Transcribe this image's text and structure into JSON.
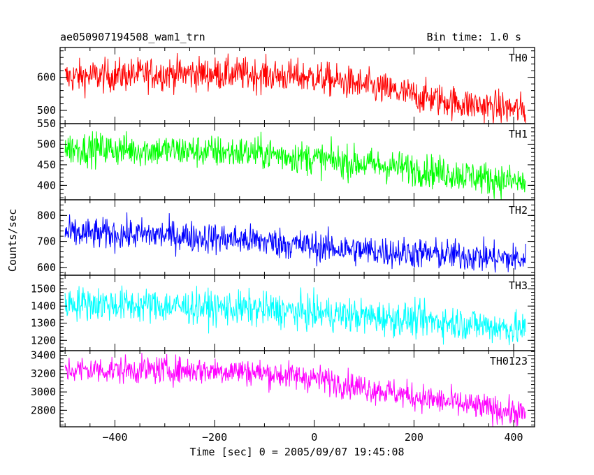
{
  "header": {
    "title": "ae050907194508_wam1_trn",
    "bin_time": "Bin time: 1.0 s"
  },
  "axes": {
    "xlabel": "Time [sec] 0 = 2005/09/07 19:45:08",
    "ylabel": "Counts/sec"
  },
  "chart_data": [
    {
      "type": "line",
      "name": "TH0",
      "color": "#ff0000",
      "x_range": [
        -500,
        424
      ],
      "ylim": [
        460,
        690
      ],
      "yticks": [
        500,
        600
      ],
      "trend": [
        [
          -500,
          600
        ],
        [
          -300,
          612
        ],
        [
          -150,
          610
        ],
        [
          0,
          600
        ],
        [
          100,
          575
        ],
        [
          200,
          545
        ],
        [
          300,
          520
        ],
        [
          424,
          500
        ]
      ],
      "noise": 25
    },
    {
      "type": "line",
      "name": "TH1",
      "color": "#00ff00",
      "x_range": [
        -500,
        424
      ],
      "ylim": [
        365,
        550
      ],
      "yticks": [
        400,
        450,
        500,
        550
      ],
      "trend": [
        [
          -500,
          490
        ],
        [
          -300,
          485
        ],
        [
          -100,
          478
        ],
        [
          0,
          465
        ],
        [
          100,
          452
        ],
        [
          200,
          440
        ],
        [
          300,
          425
        ],
        [
          424,
          405
        ]
      ],
      "noise": 20
    },
    {
      "type": "line",
      "name": "TH2",
      "color": "#0000ff",
      "x_range": [
        -500,
        424
      ],
      "ylim": [
        570,
        860
      ],
      "yticks": [
        600,
        700,
        800
      ],
      "trend": [
        [
          -500,
          730
        ],
        [
          -300,
          725
        ],
        [
          -100,
          700
        ],
        [
          0,
          680
        ],
        [
          100,
          665
        ],
        [
          200,
          655
        ],
        [
          300,
          645
        ],
        [
          424,
          630
        ]
      ],
      "noise": 30
    },
    {
      "type": "line",
      "name": "TH3",
      "color": "#00ffff",
      "x_range": [
        -500,
        424
      ],
      "ylim": [
        1140,
        1580
      ],
      "yticks": [
        1200,
        1300,
        1400,
        1500
      ],
      "trend": [
        [
          -500,
          1420
        ],
        [
          -300,
          1400
        ],
        [
          -100,
          1380
        ],
        [
          0,
          1360
        ],
        [
          100,
          1340
        ],
        [
          200,
          1320
        ],
        [
          300,
          1300
        ],
        [
          424,
          1260
        ]
      ],
      "noise": 50
    },
    {
      "type": "line",
      "name": "TH0123",
      "color": "#ff00ff",
      "x_range": [
        -500,
        424
      ],
      "ylim": [
        2620,
        3450
      ],
      "yticks": [
        2800,
        3000,
        3200,
        3400
      ],
      "trend": [
        [
          -500,
          3240
        ],
        [
          -300,
          3240
        ],
        [
          -150,
          3230
        ],
        [
          0,
          3150
        ],
        [
          100,
          3050
        ],
        [
          200,
          2950
        ],
        [
          300,
          2860
        ],
        [
          424,
          2760
        ]
      ],
      "noise": 75
    }
  ],
  "x_axis": {
    "xlim": [
      -510,
      442
    ],
    "xticks": [
      -400,
      -200,
      0,
      200,
      400
    ],
    "tick_labels": [
      "−400",
      "−200",
      "0",
      "200",
      "400"
    ]
  }
}
